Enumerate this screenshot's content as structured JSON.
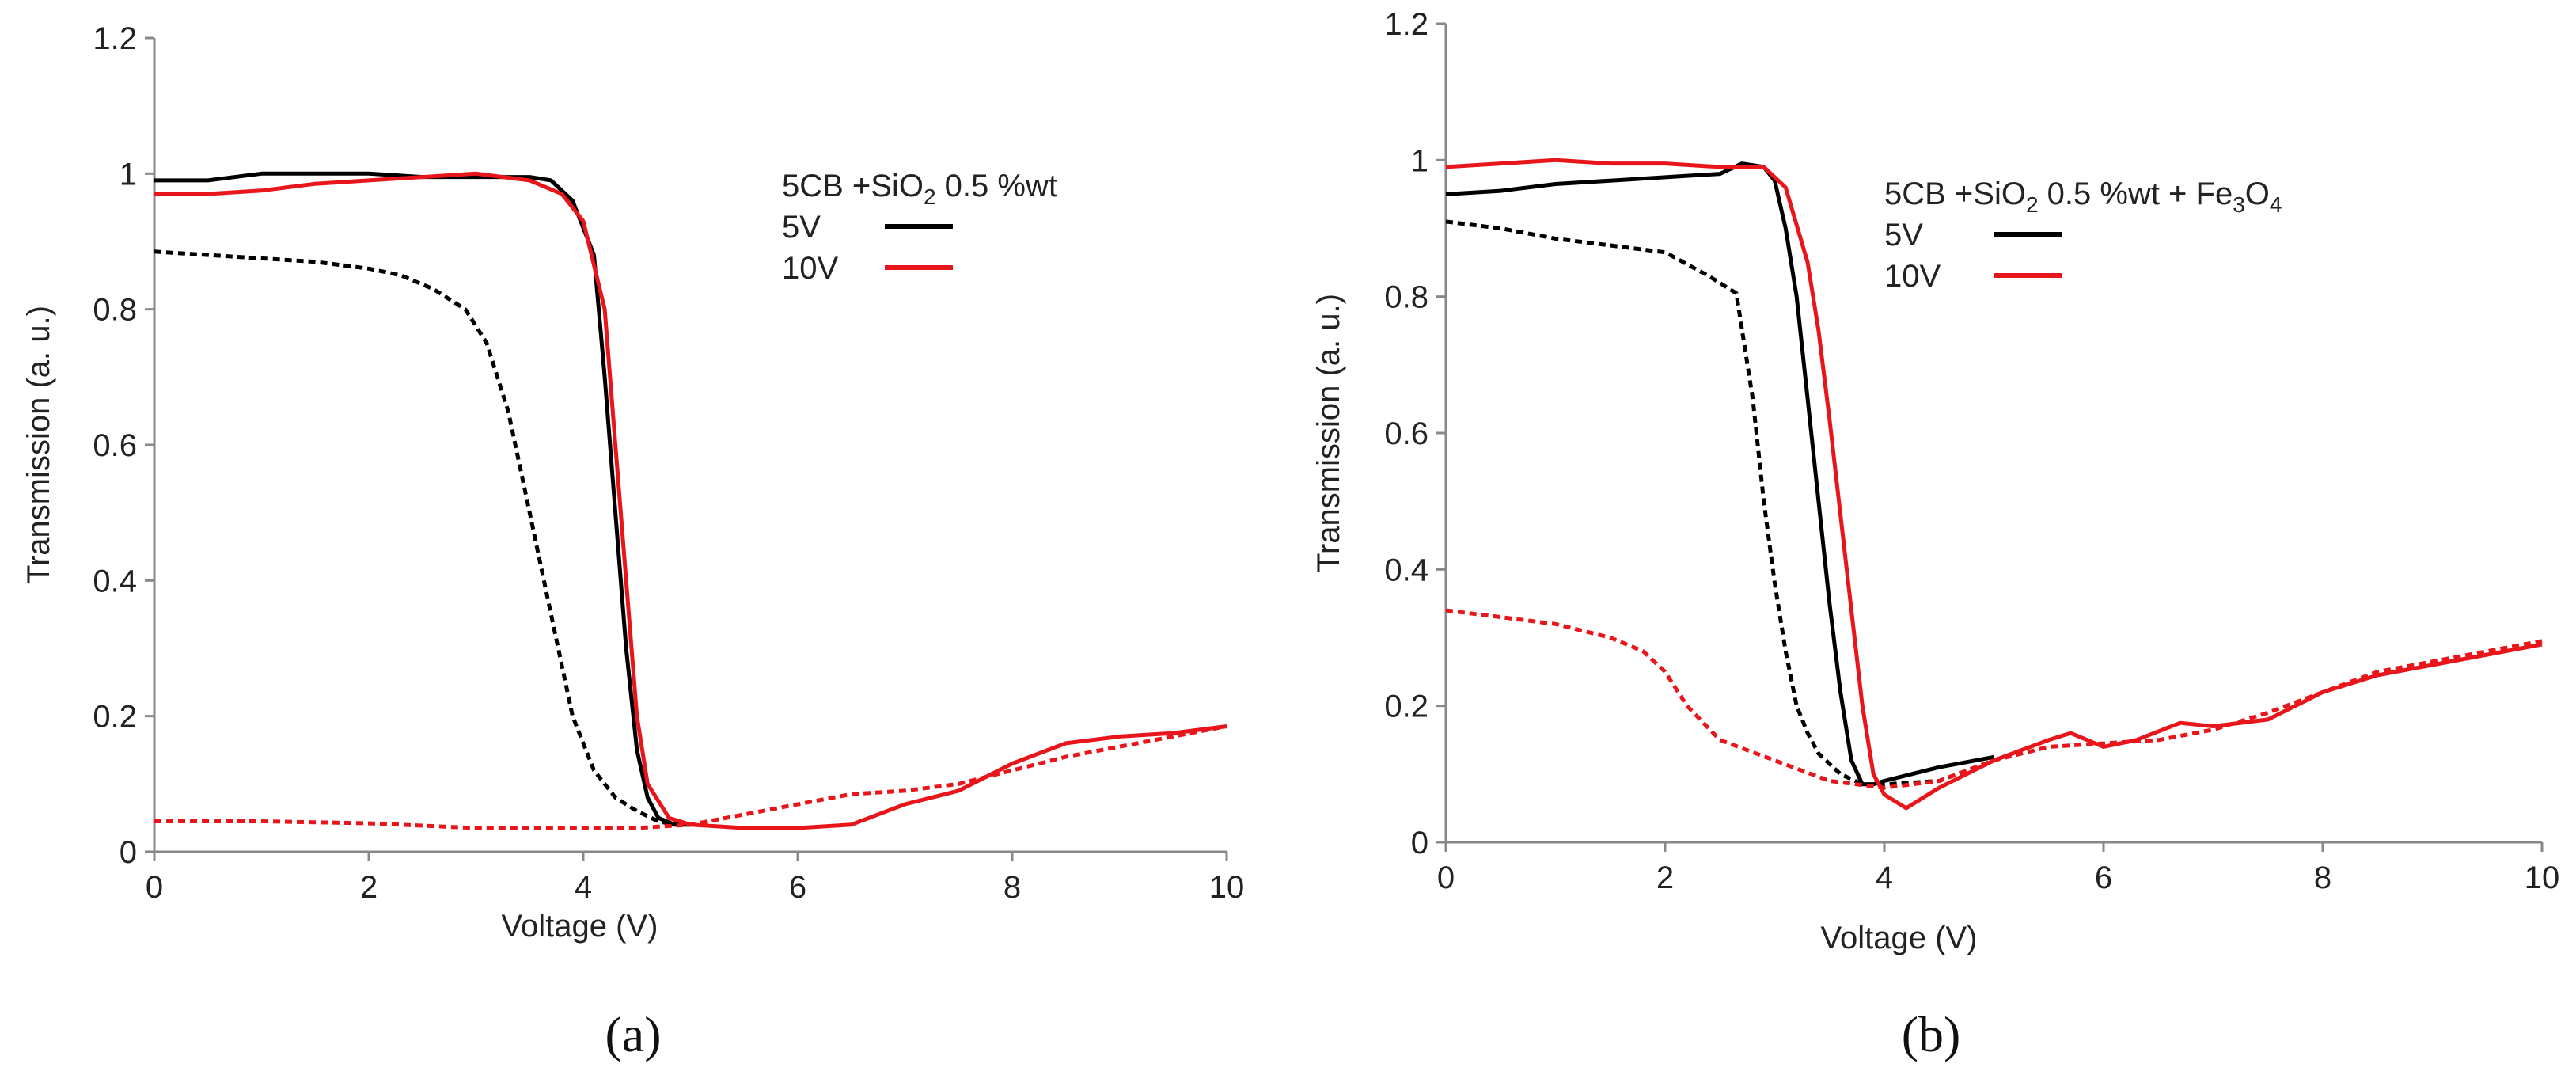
{
  "chart_data": [
    {
      "type": "line",
      "panel_label": "(a)",
      "xlabel": "Voltage (V)",
      "ylabel": "Transmission (a. u.)",
      "xlim": [
        0,
        10
      ],
      "ylim": [
        0,
        1.2
      ],
      "xticks": [
        "0",
        "2",
        "4",
        "6",
        "8",
        "10"
      ],
      "yticks": [
        "0",
        "0.2",
        "0.4",
        "0.6",
        "0.8",
        "1",
        "1.2"
      ],
      "legend": {
        "title_main": "5CB +SiO",
        "title_sub": "2",
        "title_rest": " 0.5 %wt",
        "entries": [
          {
            "label": "5V",
            "color": "#000000"
          },
          {
            "label": "10V",
            "color": "#e8161b"
          }
        ]
      },
      "series": [
        {
          "name": "5V increasing",
          "color": "#000000",
          "dash": false,
          "x": [
            0,
            0.5,
            1,
            1.5,
            2,
            2.5,
            3,
            3.5,
            3.7,
            3.9,
            4.1,
            4.2,
            4.3,
            4.4,
            4.5,
            4.6,
            4.7,
            4.85,
            5.0
          ],
          "y": [
            0.99,
            0.99,
            1.0,
            1.0,
            1.0,
            0.995,
            0.995,
            0.995,
            0.99,
            0.96,
            0.88,
            0.7,
            0.5,
            0.3,
            0.15,
            0.08,
            0.05,
            0.04,
            0.04
          ]
        },
        {
          "name": "5V decreasing",
          "color": "#000000",
          "dash": true,
          "x": [
            0,
            0.5,
            1,
            1.5,
            2,
            2.3,
            2.6,
            2.9,
            3.1,
            3.3,
            3.5,
            3.7,
            3.9,
            4.1,
            4.3,
            4.5,
            4.7,
            4.85,
            5.0
          ],
          "y": [
            0.885,
            0.88,
            0.875,
            0.87,
            0.86,
            0.85,
            0.83,
            0.8,
            0.75,
            0.65,
            0.5,
            0.35,
            0.2,
            0.12,
            0.08,
            0.06,
            0.045,
            0.04,
            0.04
          ]
        },
        {
          "name": "10V increasing",
          "color": "#e8161b",
          "dash": false,
          "x": [
            0,
            0.5,
            1,
            1.5,
            2,
            2.5,
            3,
            3.5,
            3.8,
            4.0,
            4.2,
            4.3,
            4.4,
            4.5,
            4.6,
            4.8,
            5.0,
            5.5,
            6.0,
            6.5,
            7.0,
            7.5,
            8.0,
            8.5,
            9.0,
            9.5,
            10
          ],
          "y": [
            0.97,
            0.97,
            0.975,
            0.985,
            0.99,
            0.995,
            1.0,
            0.99,
            0.97,
            0.93,
            0.8,
            0.6,
            0.4,
            0.2,
            0.1,
            0.05,
            0.04,
            0.035,
            0.035,
            0.04,
            0.07,
            0.09,
            0.13,
            0.16,
            0.17,
            0.175,
            0.185
          ]
        },
        {
          "name": "10V decreasing",
          "color": "#e8161b",
          "dash": true,
          "x": [
            0,
            1,
            2,
            3,
            4,
            4.5,
            5,
            5.5,
            6,
            6.5,
            7,
            7.5,
            8,
            8.5,
            9,
            9.5,
            10
          ],
          "y": [
            0.045,
            0.045,
            0.042,
            0.035,
            0.035,
            0.035,
            0.04,
            0.055,
            0.07,
            0.085,
            0.09,
            0.1,
            0.12,
            0.14,
            0.155,
            0.17,
            0.185
          ]
        }
      ]
    },
    {
      "type": "line",
      "panel_label": "(b)",
      "xlabel": "Voltage (V)",
      "ylabel": "Transmission (a. u.)",
      "xlim": [
        0,
        10
      ],
      "ylim": [
        0,
        1.2
      ],
      "xticks": [
        "0",
        "2",
        "4",
        "6",
        "8",
        "10"
      ],
      "yticks": [
        "0",
        "0.2",
        "0.4",
        "0.6",
        "0.8",
        "1",
        "1.2"
      ],
      "legend": {
        "title_main": "5CB +SiO",
        "title_sub": "2",
        "title_rest": " 0.5 %wt + Fe",
        "title_sub2": "3",
        "title_main2": "O",
        "title_sub3": "4",
        "entries": [
          {
            "label": "5V",
            "color": "#000000"
          },
          {
            "label": "10V",
            "color": "#e8161b"
          }
        ]
      },
      "series": [
        {
          "name": "5V increasing",
          "color": "#000000",
          "dash": false,
          "x": [
            0,
            0.5,
            1,
            1.5,
            2,
            2.5,
            2.7,
            2.9,
            3.0,
            3.1,
            3.2,
            3.3,
            3.4,
            3.5,
            3.6,
            3.7,
            3.8,
            3.9,
            4.0,
            4.5,
            5.0
          ],
          "y": [
            0.95,
            0.955,
            0.965,
            0.97,
            0.975,
            0.98,
            0.995,
            0.99,
            0.97,
            0.9,
            0.8,
            0.65,
            0.5,
            0.35,
            0.22,
            0.12,
            0.085,
            0.085,
            0.09,
            0.11,
            0.125
          ]
        },
        {
          "name": "5V decreasing",
          "color": "#000000",
          "dash": true,
          "x": [
            0,
            0.5,
            1,
            1.5,
            2,
            2.4,
            2.65,
            2.8,
            2.9,
            3.0,
            3.1,
            3.2,
            3.3,
            3.4,
            3.6,
            3.8,
            4.0,
            4.5,
            5.0
          ],
          "y": [
            0.91,
            0.9,
            0.885,
            0.875,
            0.865,
            0.83,
            0.805,
            0.65,
            0.5,
            0.38,
            0.28,
            0.2,
            0.16,
            0.13,
            0.1,
            0.085,
            0.085,
            0.09,
            0.12
          ]
        },
        {
          "name": "10V increasing",
          "color": "#e8161b",
          "dash": false,
          "x": [
            0,
            0.5,
            1,
            1.5,
            2,
            2.5,
            2.9,
            3.1,
            3.3,
            3.4,
            3.5,
            3.6,
            3.7,
            3.8,
            3.9,
            4.0,
            4.2,
            4.5,
            5.0,
            5.5,
            5.7,
            6.0,
            6.3,
            6.7,
            7.0,
            7.5,
            8.0,
            8.5,
            9.0,
            9.5,
            10
          ],
          "y": [
            0.99,
            0.995,
            1.0,
            0.995,
            0.995,
            0.99,
            0.99,
            0.96,
            0.85,
            0.75,
            0.62,
            0.48,
            0.34,
            0.2,
            0.1,
            0.07,
            0.05,
            0.08,
            0.12,
            0.15,
            0.16,
            0.14,
            0.15,
            0.175,
            0.17,
            0.18,
            0.22,
            0.245,
            0.26,
            0.275,
            0.29
          ]
        },
        {
          "name": "10V decreasing",
          "color": "#e8161b",
          "dash": true,
          "x": [
            0,
            0.5,
            1,
            1.5,
            1.8,
            2.0,
            2.2,
            2.5,
            3.0,
            3.5,
            4.0,
            4.5,
            5.0,
            5.5,
            6.0,
            6.5,
            7.0,
            7.5,
            8.0,
            8.5,
            9.0,
            9.5,
            10
          ],
          "y": [
            0.34,
            0.33,
            0.32,
            0.3,
            0.28,
            0.25,
            0.2,
            0.15,
            0.12,
            0.09,
            0.08,
            0.09,
            0.12,
            0.14,
            0.145,
            0.15,
            0.165,
            0.19,
            0.22,
            0.25,
            0.265,
            0.28,
            0.295
          ]
        }
      ]
    }
  ]
}
